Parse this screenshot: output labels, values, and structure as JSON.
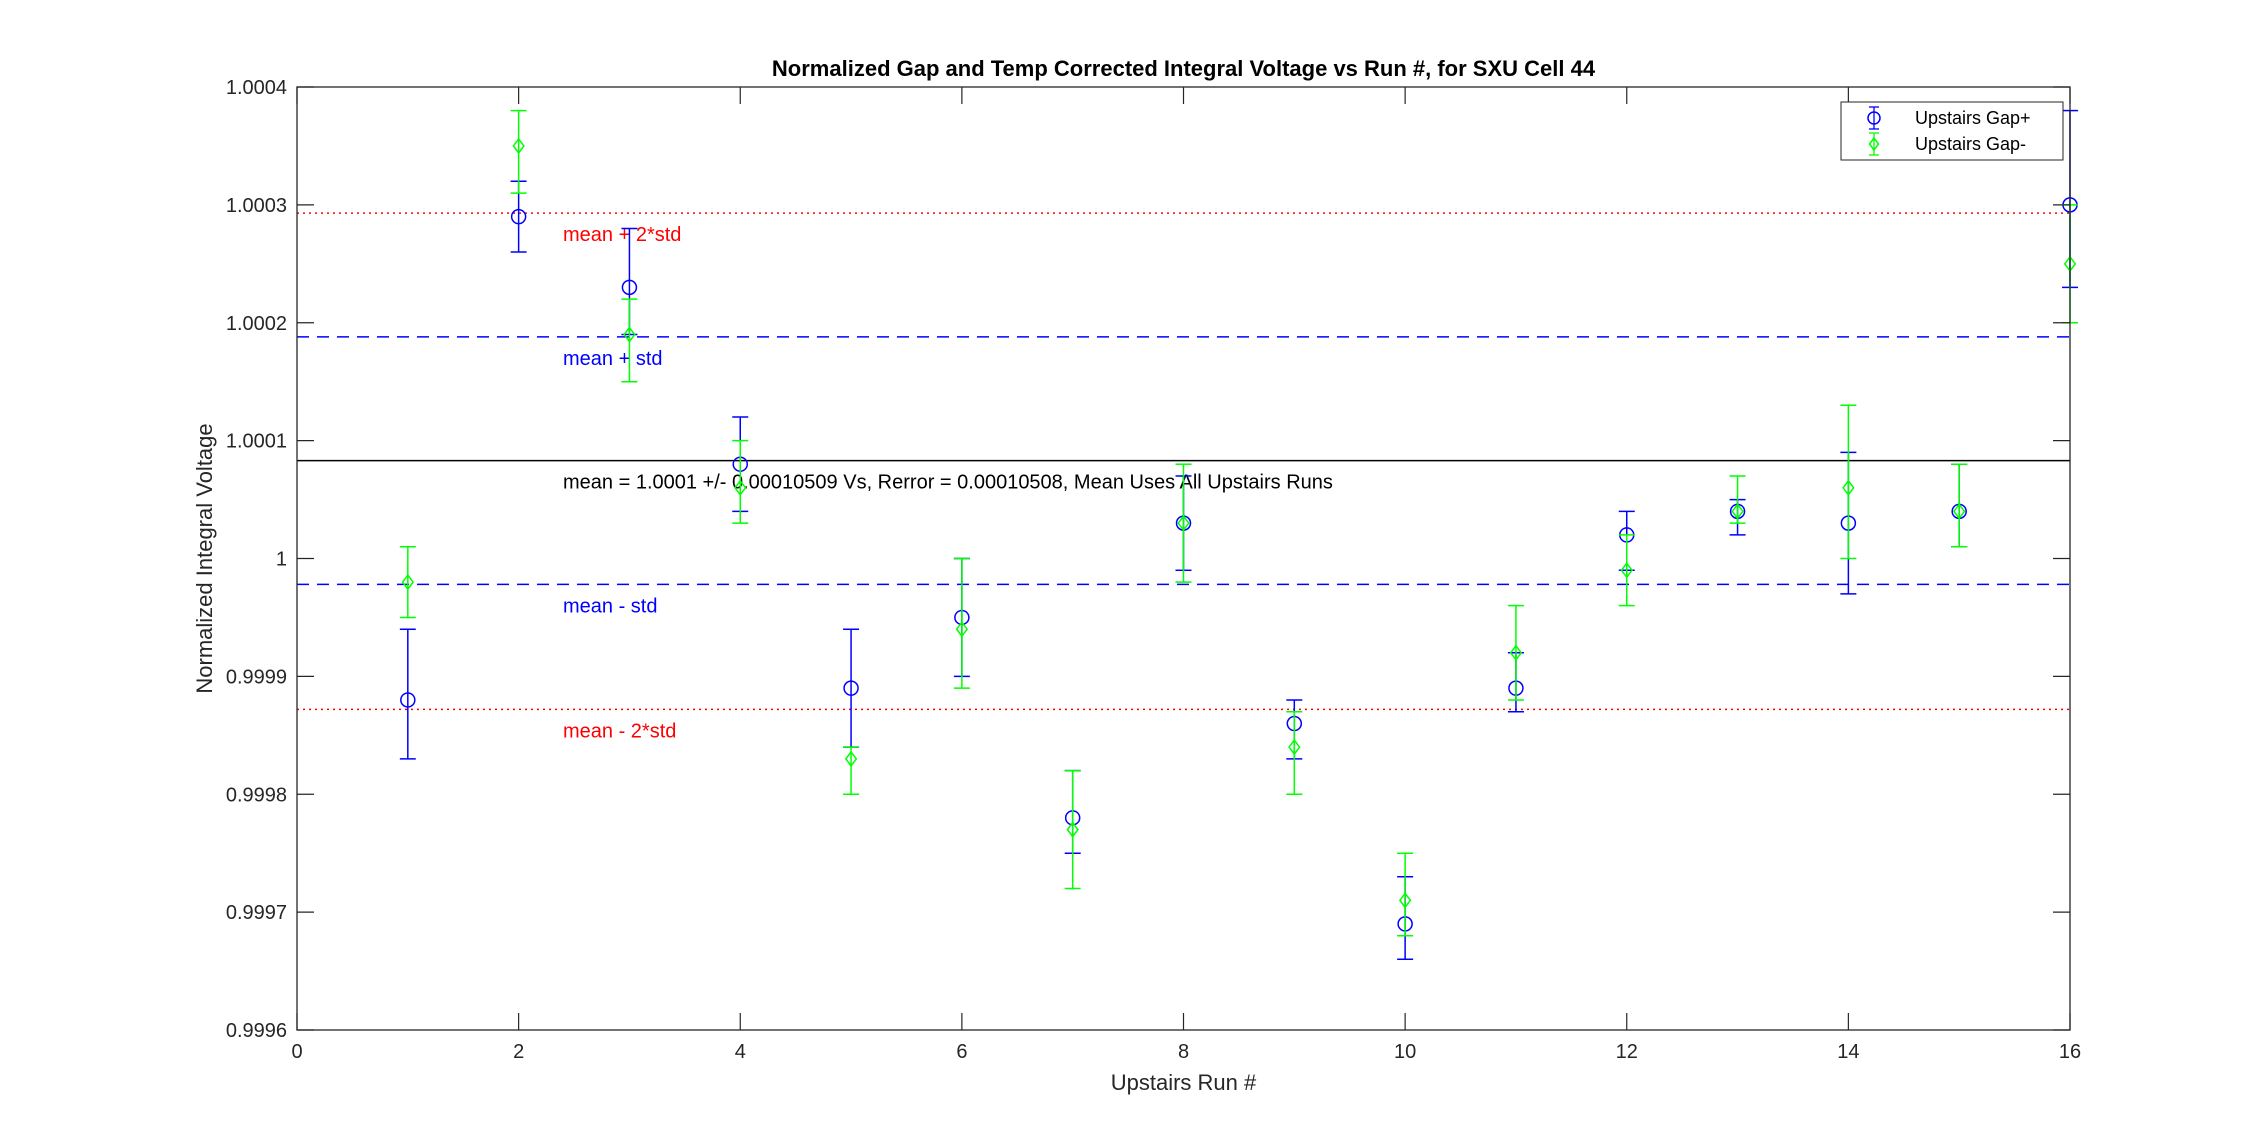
{
  "chart_data": {
    "type": "scatter",
    "title": "Normalized Gap and Temp Corrected Integral Voltage vs Run #, for SXU Cell 44",
    "xlabel": "Upstairs Run #",
    "ylabel": "Normalized Integral Voltage",
    "xlim": [
      0,
      16
    ],
    "ylim": [
      0.9996,
      1.0004
    ],
    "xticks": [
      0,
      2,
      4,
      6,
      8,
      10,
      12,
      14,
      16
    ],
    "xtick_labels": [
      "0",
      "2",
      "4",
      "6",
      "8",
      "10",
      "12",
      "14",
      "16"
    ],
    "yticks": [
      0.9996,
      0.9997,
      0.9998,
      0.9999,
      1.0,
      1.0001,
      1.0002,
      1.0003,
      1.0004
    ],
    "ytick_labels": [
      "0.9996",
      "0.9997",
      "0.9998",
      "0.9999",
      "1",
      "1.0001",
      "1.0002",
      "1.0003",
      "1.0004"
    ],
    "grid": false,
    "legend_position": "top-right",
    "series": [
      {
        "name": "Upstairs Gap+",
        "marker": "circle",
        "color": "#0000ff",
        "x": [
          1,
          2,
          3,
          4,
          5,
          6,
          7,
          8,
          9,
          10,
          11,
          12,
          13,
          14,
          15,
          16
        ],
        "y": [
          0.99988,
          1.00029,
          1.00023,
          1.00008,
          0.99989,
          0.99995,
          0.99978,
          1.00003,
          0.99986,
          0.99969,
          0.99989,
          1.00002,
          1.00004,
          1.00003,
          1.00004,
          1.0003
        ],
        "err_low": [
          0.99983,
          1.00026,
          1.00019,
          1.00004,
          0.99984,
          0.9999,
          0.99975,
          0.99999,
          0.99983,
          0.99966,
          0.99987,
          0.99999,
          1.00002,
          0.99997,
          1.00001,
          1.00023
        ],
        "err_high": [
          0.99994,
          1.00032,
          1.00028,
          1.00012,
          0.99994,
          1.0,
          0.99982,
          1.00007,
          0.99988,
          0.99973,
          0.99992,
          1.00004,
          1.00005,
          1.00009,
          1.00008,
          1.00038
        ]
      },
      {
        "name": "Upstairs Gap-",
        "marker": "diamond",
        "color": "#00ff00",
        "x": [
          1,
          2,
          3,
          4,
          5,
          6,
          7,
          8,
          9,
          10,
          11,
          12,
          13,
          14,
          15,
          16
        ],
        "y": [
          0.99998,
          1.00035,
          1.00019,
          1.00006,
          0.99983,
          0.99994,
          0.99977,
          1.00003,
          0.99984,
          0.99971,
          0.99992,
          0.99999,
          1.00004,
          1.00006,
          1.00004,
          1.00025
        ],
        "err_low": [
          0.99995,
          1.00031,
          1.00015,
          1.00003,
          0.9998,
          0.99989,
          0.99972,
          0.99998,
          0.9998,
          0.99968,
          0.99988,
          0.99996,
          1.00003,
          1.0,
          1.00001,
          1.0002
        ],
        "err_high": [
          1.00001,
          1.00038,
          1.00022,
          1.0001,
          0.99984,
          1.0,
          0.99982,
          1.00008,
          0.99987,
          0.99975,
          0.99996,
          1.00002,
          1.00007,
          1.00013,
          1.00008,
          1.0003
        ]
      }
    ],
    "reference_lines": [
      {
        "label": "mean + 2*std",
        "y": 1.000293,
        "style": "dotted",
        "color": "#ff0000"
      },
      {
        "label": "mean + std",
        "y": 1.000188,
        "style": "dashed",
        "color": "#0000ff"
      },
      {
        "label": "mean = 1.0001 +/- 0.00010509 Vs, Rerror = 0.00010508, Mean Uses All Upstairs Runs",
        "y": 1.000083,
        "style": "solid",
        "color": "#000000"
      },
      {
        "label": "mean - std",
        "y": 0.999978,
        "style": "dashed",
        "color": "#0000ff"
      },
      {
        "label": "mean - 2*std",
        "y": 0.999872,
        "style": "dotted",
        "color": "#ff0000"
      }
    ]
  }
}
